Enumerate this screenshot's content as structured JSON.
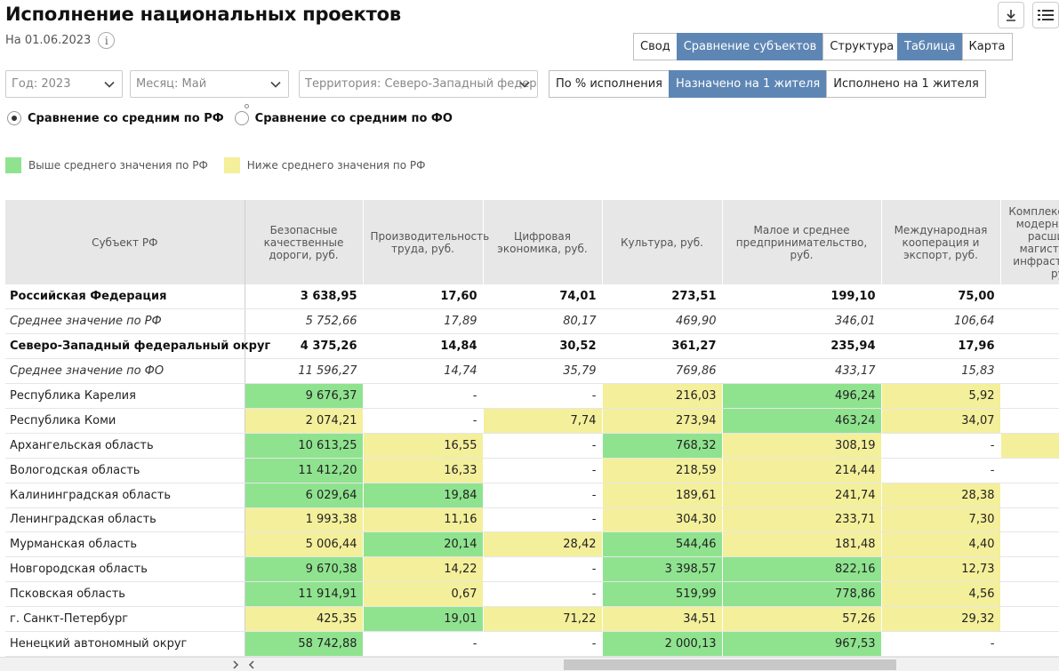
{
  "header": {
    "title": "Исполнение национальных проектов",
    "date_label": "На 01.06.2023",
    "info_icon": "i",
    "download_icon": "download-icon",
    "menu_icon": "list-menu-icon"
  },
  "view_tabs": [
    "Свод",
    "Сравнение субъектов",
    "Структура НП"
  ],
  "view_tabs_active": 1,
  "display_tabs": [
    "Таблица",
    "Карта"
  ],
  "display_tabs_active": 0,
  "filters": {
    "year": "Год: 2023",
    "month": "Месяц: Май",
    "territory": "Территория: Северо-Западный федер"
  },
  "metric_tabs": [
    "По % исполнения",
    "Назначено на 1 жителя",
    "Исполнено на 1 жителя"
  ],
  "metric_tabs_active": 1,
  "comparison": {
    "options": [
      "Сравнение со средним по РФ",
      "Сравнение со средним по ФО"
    ],
    "selected": 0
  },
  "legend": {
    "above": "Выше среднего значения по РФ",
    "below": "Ниже среднего значения по РФ"
  },
  "colors": {
    "above": "#8fe38f",
    "below": "#f4ef9a",
    "accent": "#5e86b4"
  },
  "table": {
    "columns": [
      "Субъект РФ",
      "Безопасные качественные дороги, руб.",
      "Производительность труда, руб.",
      "Цифровая экономика, руб.",
      "Культура, руб.",
      "Малое и среднее предпринимательство, руб.",
      "Международная кооперация и экспорт, руб.",
      "Комплексный план модернизации и расширения магистральной инфраструктуры, руб."
    ],
    "rows": [
      {
        "style": "bold",
        "name": "Российская Федерация",
        "cells": [
          [
            "3 638,95",
            ""
          ],
          [
            "17,60",
            ""
          ],
          [
            "74,01",
            ""
          ],
          [
            "273,51",
            ""
          ],
          [
            "199,10",
            ""
          ],
          [
            "75,00",
            ""
          ],
          [
            "",
            ""
          ]
        ]
      },
      {
        "style": "ital",
        "name": "Среднее значение по РФ",
        "cells": [
          [
            "5 752,66",
            ""
          ],
          [
            "17,89",
            ""
          ],
          [
            "80,17",
            ""
          ],
          [
            "469,90",
            ""
          ],
          [
            "346,01",
            ""
          ],
          [
            "106,64",
            ""
          ],
          [
            "",
            ""
          ]
        ]
      },
      {
        "style": "bold",
        "name": "Северо-Западный федеральный округ",
        "cells": [
          [
            "4 375,26",
            ""
          ],
          [
            "14,84",
            ""
          ],
          [
            "30,52",
            ""
          ],
          [
            "361,27",
            ""
          ],
          [
            "235,94",
            ""
          ],
          [
            "17,96",
            ""
          ],
          [
            "",
            ""
          ]
        ]
      },
      {
        "style": "ital",
        "name": "Среднее значение по ФО",
        "cells": [
          [
            "11 596,27",
            ""
          ],
          [
            "14,74",
            ""
          ],
          [
            "35,79",
            ""
          ],
          [
            "769,86",
            ""
          ],
          [
            "433,17",
            ""
          ],
          [
            "15,83",
            ""
          ],
          [
            "",
            ""
          ]
        ]
      },
      {
        "style": "",
        "name": "Республика Карелия",
        "cells": [
          [
            "9 676,37",
            "g"
          ],
          [
            "-",
            ""
          ],
          [
            "-",
            ""
          ],
          [
            "216,03",
            "y"
          ],
          [
            "496,24",
            "g"
          ],
          [
            "5,92",
            "y"
          ],
          [
            "",
            ""
          ]
        ]
      },
      {
        "style": "",
        "name": "Республика Коми",
        "cells": [
          [
            "2 074,21",
            "y"
          ],
          [
            "-",
            ""
          ],
          [
            "7,74",
            "y"
          ],
          [
            "273,94",
            "y"
          ],
          [
            "463,24",
            "g"
          ],
          [
            "34,07",
            "y"
          ],
          [
            "",
            ""
          ]
        ]
      },
      {
        "style": "",
        "name": "Архангельская область",
        "cells": [
          [
            "10 613,25",
            "g"
          ],
          [
            "16,55",
            "y"
          ],
          [
            "-",
            ""
          ],
          [
            "768,32",
            "g"
          ],
          [
            "308,19",
            "y"
          ],
          [
            "-",
            ""
          ],
          [
            "",
            "y"
          ]
        ]
      },
      {
        "style": "",
        "name": "Вологодская область",
        "cells": [
          [
            "11 412,20",
            "g"
          ],
          [
            "16,33",
            "y"
          ],
          [
            "-",
            ""
          ],
          [
            "218,59",
            "y"
          ],
          [
            "214,44",
            "y"
          ],
          [
            "-",
            ""
          ],
          [
            "",
            ""
          ]
        ]
      },
      {
        "style": "",
        "name": "Калининградская область",
        "cells": [
          [
            "6 029,64",
            "g"
          ],
          [
            "19,84",
            "g"
          ],
          [
            "-",
            ""
          ],
          [
            "189,61",
            "y"
          ],
          [
            "241,74",
            "y"
          ],
          [
            "28,38",
            "y"
          ],
          [
            "",
            ""
          ]
        ]
      },
      {
        "style": "",
        "name": "Ленинградская область",
        "cells": [
          [
            "1 993,38",
            "y"
          ],
          [
            "11,16",
            "y"
          ],
          [
            "-",
            ""
          ],
          [
            "304,30",
            "y"
          ],
          [
            "233,71",
            "y"
          ],
          [
            "7,30",
            "y"
          ],
          [
            "",
            ""
          ]
        ]
      },
      {
        "style": "",
        "name": "Мурманская область",
        "cells": [
          [
            "5 006,44",
            "y"
          ],
          [
            "20,14",
            "g"
          ],
          [
            "28,42",
            "y"
          ],
          [
            "544,46",
            "g"
          ],
          [
            "181,48",
            "y"
          ],
          [
            "4,40",
            "y"
          ],
          [
            "",
            ""
          ]
        ]
      },
      {
        "style": "",
        "name": "Новгородская область",
        "cells": [
          [
            "9 670,38",
            "g"
          ],
          [
            "14,22",
            "y"
          ],
          [
            "-",
            ""
          ],
          [
            "3 398,57",
            "g"
          ],
          [
            "822,16",
            "g"
          ],
          [
            "12,73",
            "y"
          ],
          [
            "",
            ""
          ]
        ]
      },
      {
        "style": "",
        "name": "Псковская область",
        "cells": [
          [
            "11 914,91",
            "g"
          ],
          [
            "0,67",
            "y"
          ],
          [
            "-",
            ""
          ],
          [
            "519,99",
            "g"
          ],
          [
            "778,86",
            "g"
          ],
          [
            "4,56",
            "y"
          ],
          [
            "",
            ""
          ]
        ]
      },
      {
        "style": "",
        "name": "г. Санкт-Петербург",
        "cells": [
          [
            "425,35",
            "y"
          ],
          [
            "19,01",
            "g"
          ],
          [
            "71,22",
            "y"
          ],
          [
            "34,51",
            "y"
          ],
          [
            "57,26",
            "y"
          ],
          [
            "29,32",
            "y"
          ],
          [
            "",
            ""
          ]
        ]
      },
      {
        "style": "",
        "name": "Ненецкий автономный округ",
        "cells": [
          [
            "58 742,88",
            "g"
          ],
          [
            "-",
            ""
          ],
          [
            "-",
            ""
          ],
          [
            "2 000,13",
            "g"
          ],
          [
            "967,53",
            "g"
          ],
          [
            "-",
            ""
          ],
          [
            "",
            ""
          ]
        ]
      }
    ]
  }
}
